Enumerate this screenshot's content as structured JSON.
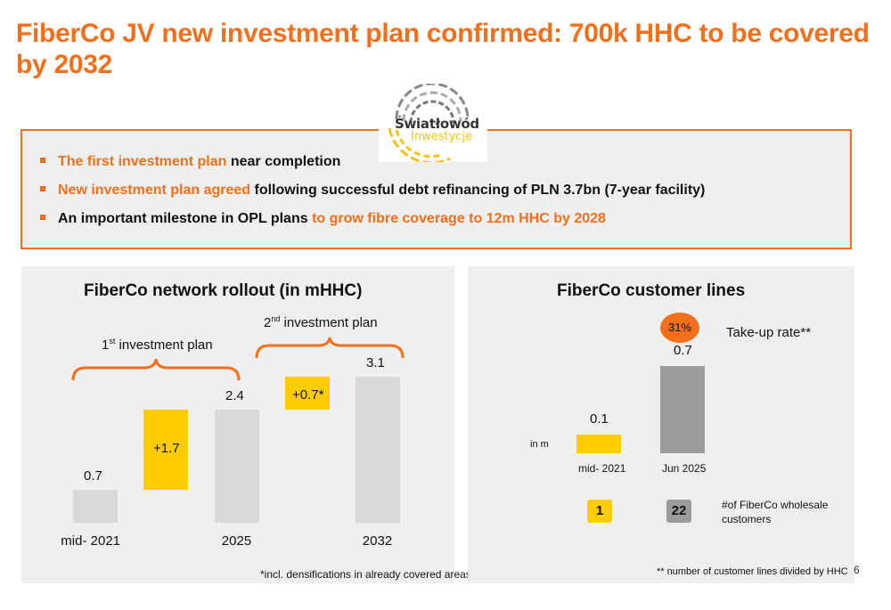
{
  "title": "FiberCo JV new investment plan confirmed: 700k HHC to be covered by 2032",
  "logo": {
    "line1": "Światłowód",
    "line2": "Inwestycje"
  },
  "bullets": [
    {
      "orange": "The first investment plan",
      "black": " near completion"
    },
    {
      "orange": "New investment plan agreed",
      "black": " following successful debt refinancing of PLN 3.7bn (7-year facility)"
    },
    {
      "black": "An important milestone in OPL plans ",
      "orange": "to grow fibre coverage to 12m HHC by 2028"
    }
  ],
  "left_panel": {
    "title": "FiberCo network rollout (in mHHC)",
    "brace1_label_pre": "1",
    "brace1_sup": "st",
    "brace1_label_post": " investment plan",
    "brace2_label_pre": "2",
    "brace2_sup": "nd",
    "brace2_label_post": " investment plan",
    "footnote": "*incl. densifications in already covered areas",
    "chart_data": {
      "type": "bar",
      "categories": [
        "mid- 2021",
        "",
        "2025",
        "",
        "2032"
      ],
      "values": [
        0.7,
        1.7,
        2.4,
        0.7,
        3.1
      ],
      "labels": [
        "0.7",
        "+1.7",
        "2.4",
        "+0.7*",
        "3.1"
      ],
      "kinds": [
        "total",
        "increment",
        "total",
        "increment",
        "total"
      ],
      "ylim": [
        0,
        3.1
      ],
      "colors": {
        "total": "#d9d9d9",
        "increment": "#ffcc00"
      }
    }
  },
  "right_panel": {
    "title": "FiberCo customer lines",
    "unit_label": "in m",
    "take_up_value": "31%",
    "take_up_label": "Take-up rate**",
    "wholesale_label_line1": "#of FiberCo wholesale",
    "wholesale_label_line2": "customers",
    "wholesale_values": [
      "1",
      "22"
    ],
    "footnote": "** number of customer lines divided by HHC",
    "chart_data": {
      "type": "bar",
      "categories": [
        "mid- 2021",
        "Jun 2025"
      ],
      "values": [
        0.1,
        0.7
      ],
      "labels": [
        "0.1",
        "0.7"
      ],
      "colors": [
        "#ffcc00",
        "#9b9b9b"
      ]
    }
  },
  "page_number": "6",
  "colors": {
    "accent": "#f26f1b",
    "yellow": "#ffcc00",
    "panel_bg": "#efefef"
  }
}
